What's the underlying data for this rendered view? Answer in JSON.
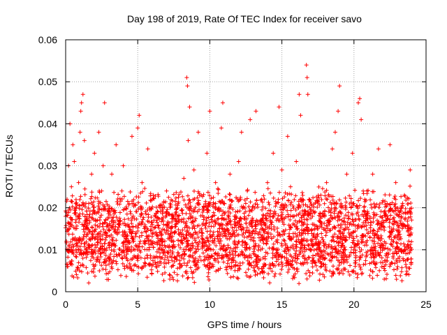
{
  "chart_data": {
    "type": "scatter",
    "title": "Day 198 of 2019, Rate Of TEC Index for receiver savo",
    "xlabel": "GPS time / hours",
    "ylabel": "ROTI / TECUs",
    "xlim": [
      0,
      25
    ],
    "ylim": [
      0,
      0.06
    ],
    "xticks": [
      0,
      5,
      10,
      15,
      20,
      25
    ],
    "xtick_labels": [
      "0",
      "5",
      "10",
      "15",
      "20",
      "25"
    ],
    "yticks": [
      0,
      0.01,
      0.02,
      0.03,
      0.04,
      0.05,
      0.06
    ],
    "ytick_labels": [
      "0",
      "0.01",
      "0.02",
      "0.03",
      "0.04",
      "0.05",
      "0.06"
    ],
    "grid": true,
    "marker": "+",
    "series": [
      {
        "name": "ROTI",
        "color": "#ff0000",
        "points": [
          [
            0.05,
            0.012
          ],
          [
            0.1,
            0.022
          ],
          [
            0.15,
            0.006
          ],
          [
            0.2,
            0.03
          ],
          [
            0.3,
            0.04
          ],
          [
            0.35,
            0.016
          ],
          [
            0.4,
            0.025
          ],
          [
            0.5,
            0.035
          ],
          [
            0.55,
            0.009
          ],
          [
            0.6,
            0.031
          ],
          [
            0.7,
            0.02
          ],
          [
            0.8,
            0.011
          ],
          [
            0.9,
            0.026
          ],
          [
            1.0,
            0.038
          ],
          [
            1.05,
            0.043
          ],
          [
            1.1,
            0.045
          ],
          [
            1.2,
            0.047
          ],
          [
            1.3,
            0.036
          ],
          [
            1.4,
            0.01
          ],
          [
            1.5,
            0.015
          ],
          [
            1.6,
            0.021
          ],
          [
            1.8,
            0.028
          ],
          [
            1.9,
            0.013
          ],
          [
            2.0,
            0.033
          ],
          [
            2.2,
            0.017
          ],
          [
            2.3,
            0.038
          ],
          [
            2.4,
            0.009
          ],
          [
            2.5,
            0.024
          ],
          [
            2.6,
            0.03
          ],
          [
            2.7,
            0.045
          ],
          [
            2.8,
            0.014
          ],
          [
            3.0,
            0.019
          ],
          [
            3.2,
            0.028
          ],
          [
            3.4,
            0.011
          ],
          [
            3.5,
            0.035
          ],
          [
            3.7,
            0.016
          ],
          [
            3.9,
            0.024
          ],
          [
            4.0,
            0.03
          ],
          [
            4.2,
            0.013
          ],
          [
            4.4,
            0.021
          ],
          [
            4.6,
            0.037
          ],
          [
            4.8,
            0.01
          ],
          [
            5.0,
            0.039
          ],
          [
            5.1,
            0.042
          ],
          [
            5.2,
            0.018
          ],
          [
            5.3,
            0.026
          ],
          [
            5.5,
            0.012
          ],
          [
            5.7,
            0.034
          ],
          [
            5.9,
            0.008
          ],
          [
            6.0,
            0.022
          ],
          [
            6.2,
            0.014
          ],
          [
            6.4,
            0.019
          ],
          [
            6.6,
            0.011
          ],
          [
            6.8,
            0.016
          ],
          [
            7.0,
            0.024
          ],
          [
            7.2,
            0.013
          ],
          [
            7.4,
            0.009
          ],
          [
            7.6,
            0.017
          ],
          [
            7.8,
            0.021
          ],
          [
            8.0,
            0.012
          ],
          [
            8.2,
            0.027
          ],
          [
            8.4,
            0.051
          ],
          [
            8.45,
            0.049
          ],
          [
            8.5,
            0.036
          ],
          [
            8.6,
            0.044
          ],
          [
            8.7,
            0.018
          ],
          [
            8.9,
            0.029
          ],
          [
            9.0,
            0.014
          ],
          [
            9.2,
            0.038
          ],
          [
            9.4,
            0.023
          ],
          [
            9.6,
            0.011
          ],
          [
            9.8,
            0.033
          ],
          [
            10.0,
            0.043
          ],
          [
            10.2,
            0.018
          ],
          [
            10.4,
            0.026
          ],
          [
            10.6,
            0.012
          ],
          [
            10.8,
            0.039
          ],
          [
            10.9,
            0.045
          ],
          [
            11.0,
            0.021
          ],
          [
            11.2,
            0.015
          ],
          [
            11.4,
            0.028
          ],
          [
            11.6,
            0.009
          ],
          [
            11.8,
            0.019
          ],
          [
            12.0,
            0.031
          ],
          [
            12.2,
            0.038
          ],
          [
            12.4,
            0.013
          ],
          [
            12.6,
            0.024
          ],
          [
            12.8,
            0.041
          ],
          [
            13.0,
            0.017
          ],
          [
            13.2,
            0.043
          ],
          [
            13.4,
            0.011
          ],
          [
            13.6,
            0.022
          ],
          [
            13.8,
            0.014
          ],
          [
            14.0,
            0.026
          ],
          [
            14.2,
            0.018
          ],
          [
            14.4,
            0.033
          ],
          [
            14.6,
            0.012
          ],
          [
            14.8,
            0.044
          ],
          [
            15.0,
            0.029
          ],
          [
            15.2,
            0.02
          ],
          [
            15.4,
            0.037
          ],
          [
            15.6,
            0.025
          ],
          [
            15.8,
            0.013
          ],
          [
            16.0,
            0.031
          ],
          [
            16.2,
            0.047
          ],
          [
            16.3,
            0.042
          ],
          [
            16.5,
            0.016
          ],
          [
            16.7,
            0.054
          ],
          [
            16.75,
            0.051
          ],
          [
            16.8,
            0.047
          ],
          [
            16.9,
            0.022
          ],
          [
            17.1,
            0.012
          ],
          [
            17.3,
            0.019
          ],
          [
            17.5,
            0.015
          ],
          [
            17.7,
            0.023
          ],
          [
            17.9,
            0.011
          ],
          [
            18.1,
            0.026
          ],
          [
            18.3,
            0.017
          ],
          [
            18.5,
            0.034
          ],
          [
            18.7,
            0.038
          ],
          [
            18.9,
            0.043
          ],
          [
            19.0,
            0.049
          ],
          [
            19.1,
            0.021
          ],
          [
            19.3,
            0.013
          ],
          [
            19.5,
            0.028
          ],
          [
            19.7,
            0.016
          ],
          [
            19.9,
            0.033
          ],
          [
            20.1,
            0.011
          ],
          [
            20.3,
            0.045
          ],
          [
            20.4,
            0.046
          ],
          [
            20.5,
            0.041
          ],
          [
            20.7,
            0.019
          ],
          [
            20.9,
            0.024
          ],
          [
            21.1,
            0.013
          ],
          [
            21.3,
            0.028
          ],
          [
            21.5,
            0.009
          ],
          [
            21.7,
            0.034
          ],
          [
            21.9,
            0.016
          ],
          [
            22.1,
            0.003
          ],
          [
            22.3,
            0.021
          ],
          [
            22.5,
            0.035
          ],
          [
            22.7,
            0.012
          ],
          [
            22.9,
            0.026
          ],
          [
            23.1,
            0.018
          ],
          [
            23.3,
            0.01
          ],
          [
            23.5,
            0.023
          ],
          [
            23.7,
            0.015
          ],
          [
            23.9,
            0.029
          ]
        ]
      }
    ],
    "dense_cloud": {
      "description": "Dense band of points filling the central region",
      "x_range": [
        0,
        24
      ],
      "baseline_min": 0.005,
      "baseline_max": 0.022,
      "count": 3000,
      "seed": 198
    }
  }
}
